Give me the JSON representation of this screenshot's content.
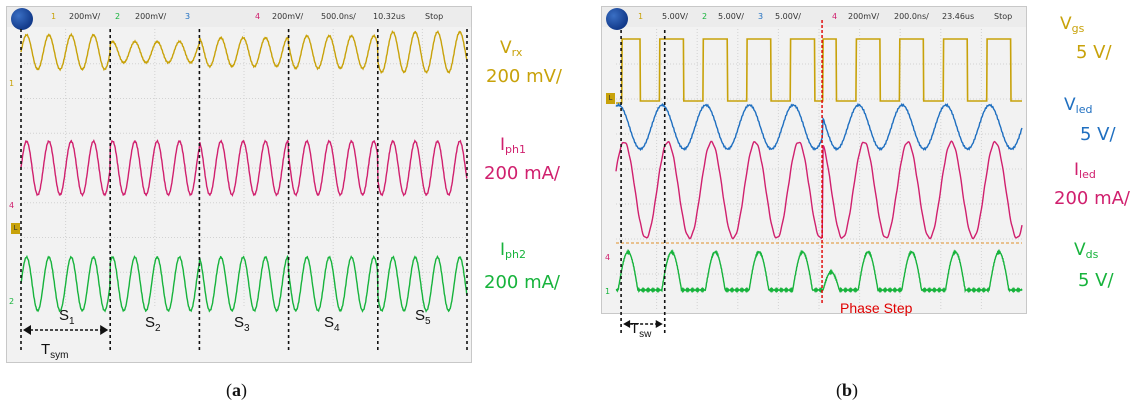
{
  "chart_data": [
    {
      "type": "line",
      "panel": "(a)",
      "header": {
        "ch1": "1",
        "ch1_scale": "200mV/",
        "ch2": "2",
        "ch2_scale": "200mV/",
        "ch3": "3",
        "ch4": "4",
        "ch4_scale": "200mV/",
        "timebase": "500.0ns/",
        "delay": "10.32us",
        "status": "Stop"
      },
      "time_window_ns": [
        0,
        5000
      ],
      "series": [
        {
          "name": "Vrx",
          "label_main": "V",
          "label_sub": "rx",
          "scale": "200 mV/",
          "color": "#c8a20a",
          "segment_amplitude_mV": [
            180,
            110,
            150,
            170,
            210
          ],
          "offset_div": 2.3
        },
        {
          "name": "Iph1",
          "label_main": "I",
          "label_sub": "ph1",
          "scale": "200 mA/",
          "color": "#d0206e",
          "segment_amplitude_mA": [
            280,
            280,
            280,
            280,
            280
          ],
          "offset_div": 0
        },
        {
          "name": "Iph2",
          "label_main": "I",
          "label_sub": "ph2",
          "scale": "200 mA/",
          "color": "#17b33c",
          "segment_amplitude_mA": [
            280,
            280,
            280,
            280,
            280
          ],
          "offset_div": -2.3
        }
      ],
      "signal_period_ns": 250,
      "segments": [
        {
          "main": "S",
          "sub": "1"
        },
        {
          "main": "S",
          "sub": "2"
        },
        {
          "main": "S",
          "sub": "3"
        },
        {
          "main": "S",
          "sub": "4"
        },
        {
          "main": "S",
          "sub": "5"
        }
      ],
      "segment_boundaries_ns": [
        0,
        1000,
        2000,
        3000,
        4000,
        5000
      ],
      "span_label": {
        "main": "T",
        "sub": "sym"
      },
      "side_markers": {
        "m1": "1",
        "m4": "4",
        "m2": "2",
        "ml": "L"
      }
    },
    {
      "type": "line",
      "panel": "(b)",
      "header": {
        "ch1": "1",
        "ch1_scale": "5.00V/",
        "ch2": "2",
        "ch2_scale": "5.00V/",
        "ch3": "3",
        "ch3_scale": "5.00V/",
        "ch4": "4",
        "ch4_scale": "200mV/",
        "timebase": "200.0ns/",
        "delay": "23.46us",
        "status": "Stop"
      },
      "time_window_ns": [
        0,
        2000
      ],
      "series": [
        {
          "name": "Vgs",
          "label_main": "V",
          "label_sub": "gs",
          "scale": "5 V/",
          "color": "#c8a20a",
          "shape": "square"
        },
        {
          "name": "Vled",
          "label_main": "V",
          "label_sub": "led",
          "scale": "5 V/",
          "color": "#1f6fc0",
          "shape": "sine"
        },
        {
          "name": "Iled",
          "label_main": "I",
          "label_sub": "led",
          "scale": "200 mA/",
          "color": "#d0206e",
          "shape": "sine"
        },
        {
          "name": "Vds",
          "label_main": "V",
          "label_sub": "ds",
          "scale": "5 V/",
          "color": "#17b33c",
          "shape": "pulse"
        }
      ],
      "switching_period_ns": 215,
      "phase_step_ns": 1020,
      "phase_step_label": "Phase Step",
      "span_label": {
        "main": "T",
        "sub": "sw"
      },
      "side_markers": {
        "m1": "1",
        "m4": "4",
        "ml": "L"
      }
    }
  ],
  "captions": {
    "a_open": "(",
    "a_letter": "a",
    "a_close": ")",
    "b_open": "(",
    "b_letter": "b",
    "b_close": ")"
  }
}
